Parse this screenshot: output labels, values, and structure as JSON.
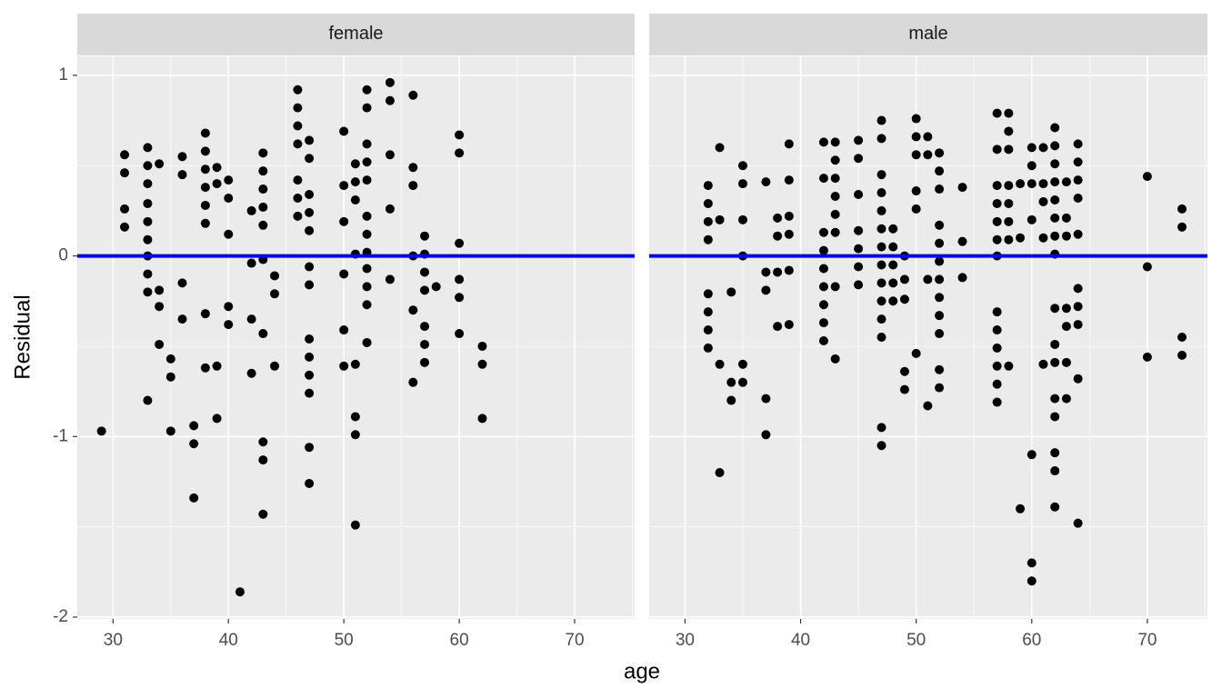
{
  "chart_data": {
    "type": "scatter",
    "xlabel": "age",
    "ylabel": "Residual",
    "xlim": [
      26.9,
      75.2
    ],
    "ylim": [
      -2.01,
      1.105
    ],
    "xticks": [
      30,
      40,
      50,
      60,
      70
    ],
    "yticks": [
      1,
      0,
      -1,
      -2
    ],
    "x_minor_ticks": [
      35,
      45,
      55,
      65,
      75
    ],
    "y_minor_ticks": [
      0.5,
      -0.5,
      -1.5
    ],
    "grid": true,
    "color": "#000000",
    "hline": 0,
    "hline_color": "#0000ff",
    "facets": [
      {
        "title": "female",
        "x": [
          29,
          31,
          31,
          31,
          31,
          33,
          33,
          33,
          33,
          33,
          33,
          33,
          33,
          33,
          33,
          34,
          34,
          34,
          34,
          35,
          35,
          35,
          36,
          36,
          36,
          36,
          37,
          37,
          37,
          38,
          38,
          38,
          38,
          38,
          38,
          38,
          38,
          39,
          39,
          39,
          39,
          40,
          40,
          40,
          40,
          40,
          41,
          42,
          42,
          42,
          42,
          43,
          43,
          43,
          43,
          43,
          43,
          43,
          43,
          43,
          43,
          44,
          44,
          44,
          46,
          46,
          46,
          46,
          46,
          46,
          46,
          47,
          47,
          47,
          47,
          47,
          47,
          47,
          47,
          47,
          47,
          47,
          47,
          47,
          50,
          50,
          50,
          50,
          50,
          50,
          51,
          51,
          51,
          51,
          51,
          51,
          51,
          51,
          52,
          52,
          52,
          52,
          52,
          52,
          52,
          52,
          52,
          52,
          52,
          52,
          54,
          54,
          54,
          54,
          54,
          56,
          56,
          56,
          56,
          56,
          56,
          57,
          57,
          57,
          57,
          57,
          57,
          57,
          58,
          60,
          60,
          60,
          60,
          60,
          60,
          62,
          62,
          62
        ],
        "y": [
          -0.97,
          0.56,
          0.46,
          0.26,
          0.16,
          0.6,
          0.5,
          0.4,
          0.29,
          0.19,
          0.09,
          0.0,
          -0.1,
          -0.2,
          -0.8,
          0.51,
          -0.19,
          -0.28,
          -0.49,
          -0.57,
          -0.67,
          -0.97,
          0.55,
          0.45,
          -0.15,
          -0.35,
          -0.94,
          -1.04,
          -1.34,
          0.68,
          0.58,
          0.48,
          0.38,
          0.28,
          0.18,
          -0.32,
          -0.62,
          0.49,
          0.4,
          -0.61,
          -0.9,
          0.42,
          0.32,
          0.12,
          -0.28,
          -0.38,
          -1.86,
          0.25,
          -0.04,
          -0.35,
          -0.65,
          0.57,
          0.47,
          0.37,
          0.27,
          0.17,
          -0.02,
          -0.43,
          -1.03,
          -1.13,
          -1.43,
          -0.11,
          -0.21,
          -0.61,
          0.92,
          0.82,
          0.72,
          0.62,
          0.42,
          0.32,
          0.22,
          0.64,
          0.54,
          0.34,
          0.24,
          0.14,
          -0.06,
          -0.16,
          -0.46,
          -0.56,
          -0.66,
          -0.76,
          -1.06,
          -1.26,
          0.69,
          0.39,
          0.19,
          -0.1,
          -0.41,
          -0.61,
          0.51,
          0.41,
          0.31,
          0.01,
          -0.6,
          -0.89,
          -0.99,
          -1.49,
          0.92,
          0.82,
          0.62,
          0.52,
          0.42,
          0.22,
          0.12,
          0.02,
          -0.07,
          -0.17,
          -0.27,
          -0.48,
          0.96,
          0.86,
          0.56,
          0.26,
          -0.13,
          0.89,
          0.49,
          0.39,
          0.0,
          -0.3,
          -0.7,
          0.11,
          0.01,
          -0.09,
          -0.19,
          -0.39,
          -0.49,
          -0.59,
          -0.17,
          0.67,
          0.57,
          0.07,
          -0.13,
          -0.23,
          -0.43,
          -0.5,
          -0.6,
          -0.9
        ]
      },
      {
        "title": "male",
        "x": [
          32,
          32,
          32,
          32,
          32,
          32,
          32,
          32,
          33,
          33,
          33,
          33,
          34,
          34,
          34,
          35,
          35,
          35,
          35,
          35,
          35,
          37,
          37,
          37,
          37,
          37,
          38,
          38,
          38,
          38,
          39,
          39,
          39,
          39,
          39,
          39,
          42,
          42,
          42,
          42,
          42,
          42,
          42,
          42,
          42,
          43,
          43,
          43,
          43,
          43,
          43,
          43,
          43,
          45,
          45,
          45,
          45,
          45,
          45,
          45,
          47,
          47,
          47,
          47,
          47,
          47,
          47,
          47,
          47,
          47,
          47,
          47,
          47,
          47,
          48,
          48,
          48,
          48,
          48,
          49,
          49,
          49,
          49,
          49,
          50,
          50,
          50,
          50,
          50,
          50,
          51,
          51,
          51,
          51,
          52,
          52,
          52,
          52,
          52,
          52,
          52,
          52,
          52,
          52,
          52,
          52,
          54,
          54,
          54,
          57,
          57,
          57,
          57,
          57,
          57,
          57,
          57,
          57,
          57,
          57,
          57,
          57,
          58,
          58,
          58,
          58,
          58,
          58,
          58,
          58,
          59,
          59,
          59,
          60,
          60,
          60,
          60,
          60,
          60,
          60,
          61,
          61,
          61,
          61,
          61,
          62,
          62,
          62,
          62,
          62,
          62,
          62,
          62,
          62,
          62,
          62,
          62,
          62,
          62,
          62,
          62,
          63,
          63,
          63,
          63,
          63,
          63,
          63,
          64,
          64,
          64,
          64,
          64,
          64,
          64,
          64,
          64,
          64,
          70,
          70,
          70,
          73,
          73,
          73,
          73
        ],
        "y": [
          0.39,
          0.29,
          0.19,
          0.09,
          -0.21,
          -0.31,
          -0.41,
          -0.51,
          0.6,
          0.2,
          -0.6,
          -1.2,
          -0.2,
          -0.7,
          -0.8,
          0.5,
          0.4,
          0.2,
          0.0,
          -0.6,
          -0.7,
          0.41,
          -0.09,
          -0.19,
          -0.79,
          -0.99,
          0.21,
          0.11,
          -0.09,
          -0.39,
          0.62,
          0.42,
          0.22,
          0.12,
          -0.08,
          -0.38,
          0.63,
          0.43,
          0.13,
          0.03,
          -0.07,
          -0.17,
          -0.27,
          -0.37,
          -0.47,
          0.63,
          0.53,
          0.43,
          0.33,
          0.23,
          0.13,
          -0.17,
          -0.57,
          0.64,
          0.54,
          0.34,
          0.14,
          0.04,
          -0.06,
          -0.16,
          0.75,
          0.65,
          0.45,
          0.35,
          0.25,
          0.15,
          0.05,
          -0.05,
          -0.15,
          -0.25,
          -0.35,
          -0.45,
          -0.95,
          -1.05,
          0.15,
          0.05,
          -0.05,
          -0.15,
          -0.25,
          0.0,
          -0.13,
          -0.24,
          -0.64,
          -0.74,
          0.76,
          0.66,
          0.56,
          0.36,
          0.26,
          -0.54,
          0.66,
          0.56,
          -0.13,
          -0.83,
          0.57,
          0.47,
          0.37,
          0.17,
          0.07,
          -0.03,
          -0.13,
          -0.23,
          -0.33,
          -0.43,
          -0.63,
          -0.73,
          0.38,
          0.08,
          -0.12,
          0.79,
          0.59,
          0.39,
          0.29,
          0.19,
          0.09,
          0.0,
          -0.31,
          -0.41,
          -0.51,
          -0.61,
          -0.71,
          -0.81,
          0.79,
          0.69,
          0.59,
          0.39,
          0.29,
          0.19,
          0.09,
          -0.61,
          0.4,
          0.1,
          -1.4,
          0.6,
          0.5,
          0.4,
          0.2,
          -1.1,
          -1.7,
          -1.8,
          0.6,
          0.4,
          0.3,
          0.1,
          -0.6,
          0.71,
          0.61,
          0.51,
          0.41,
          0.31,
          0.21,
          0.11,
          0.01,
          -0.29,
          -0.49,
          -0.59,
          -0.79,
          -0.89,
          -1.09,
          -1.19,
          -1.39,
          0.41,
          0.21,
          0.11,
          -0.29,
          -0.39,
          -0.59,
          -0.79,
          0.62,
          0.52,
          0.42,
          0.32,
          0.12,
          -0.18,
          -0.28,
          -0.38,
          -0.68,
          -1.48,
          0.44,
          -0.06,
          -0.56,
          0.26,
          0.16,
          -0.45,
          -0.55
        ]
      }
    ]
  }
}
